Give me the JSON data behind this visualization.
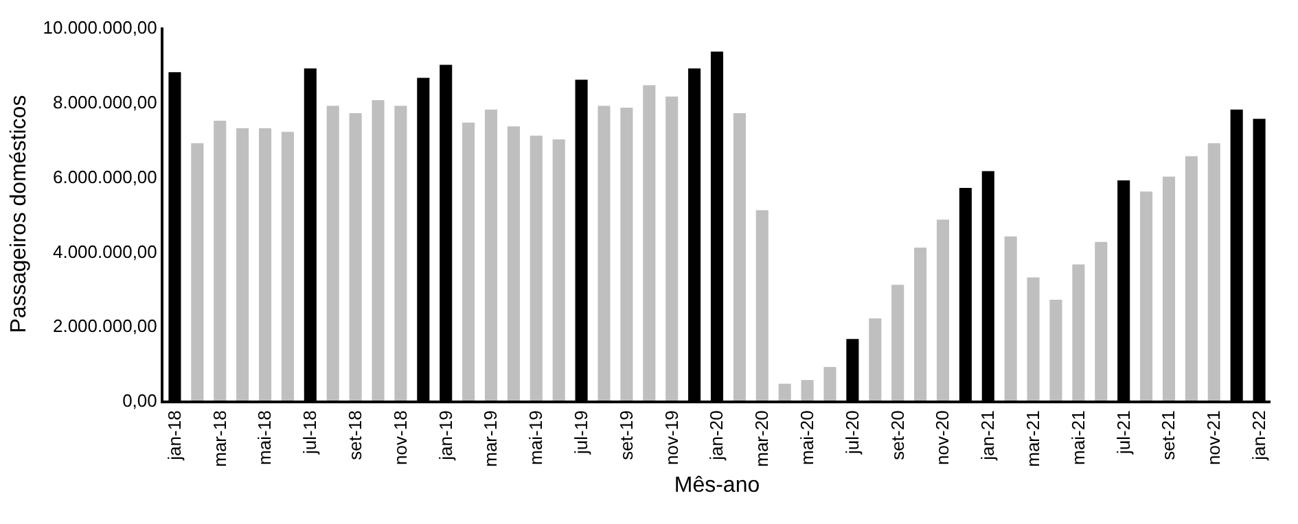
{
  "chart_data": {
    "type": "bar",
    "xlabel": "Mês-ano",
    "ylabel": "Passageiros domésticos",
    "categories": [
      "jan-18",
      null,
      "mar-18",
      null,
      "mai-18",
      null,
      "jul-18",
      null,
      "set-18",
      null,
      "nov-18",
      null,
      "jan-19",
      null,
      "mar-19",
      null,
      "mai-19",
      null,
      "jul-19",
      null,
      "set-19",
      null,
      "nov-19",
      null,
      "jan-20",
      null,
      "mar-20",
      null,
      "mai-20",
      null,
      "jul-20",
      null,
      "set-20",
      null,
      "nov-20",
      null,
      "jan-21",
      null,
      "mar-21",
      null,
      "mai-21",
      null,
      "jul-21",
      null,
      "set-21",
      null,
      "nov-21",
      null,
      "jan-22"
    ],
    "values": [
      8800000,
      6900000,
      7500000,
      7300000,
      7300000,
      7200000,
      8900000,
      7900000,
      7700000,
      8050000,
      7900000,
      8650000,
      9000000,
      7450000,
      7800000,
      7350000,
      7100000,
      7000000,
      8600000,
      7900000,
      7850000,
      8450000,
      8150000,
      8900000,
      9350000,
      7700000,
      5100000,
      450000,
      550000,
      900000,
      1650000,
      2200000,
      3100000,
      4100000,
      4850000,
      5700000,
      6150000,
      4400000,
      3300000,
      2700000,
      3650000,
      4250000,
      5900000,
      5600000,
      6000000,
      6550000,
      6900000,
      7800000,
      7550000
    ],
    "colors": [
      "#000000",
      "#bfbfbf",
      "#bfbfbf",
      "#bfbfbf",
      "#bfbfbf",
      "#bfbfbf",
      "#000000",
      "#bfbfbf",
      "#bfbfbf",
      "#bfbfbf",
      "#bfbfbf",
      "#000000",
      "#000000",
      "#bfbfbf",
      "#bfbfbf",
      "#bfbfbf",
      "#bfbfbf",
      "#bfbfbf",
      "#000000",
      "#bfbfbf",
      "#bfbfbf",
      "#bfbfbf",
      "#bfbfbf",
      "#000000",
      "#000000",
      "#bfbfbf",
      "#bfbfbf",
      "#bfbfbf",
      "#bfbfbf",
      "#bfbfbf",
      "#000000",
      "#bfbfbf",
      "#bfbfbf",
      "#bfbfbf",
      "#bfbfbf",
      "#000000",
      "#000000",
      "#bfbfbf",
      "#bfbfbf",
      "#bfbfbf",
      "#bfbfbf",
      "#bfbfbf",
      "#000000",
      "#bfbfbf",
      "#bfbfbf",
      "#bfbfbf",
      "#bfbfbf",
      "#000000",
      "#000000"
    ],
    "ylim": [
      0,
      10000000
    ],
    "yticks": [
      {
        "value": 0,
        "label": "0,00"
      },
      {
        "value": 2000000,
        "label": "2.000.000,00"
      },
      {
        "value": 4000000,
        "label": "4.000.000,00"
      },
      {
        "value": 6000000,
        "label": "6.000.000,00"
      },
      {
        "value": 8000000,
        "label": "8.000.000,00"
      },
      {
        "value": 10000000,
        "label": "10.000.000,00"
      }
    ],
    "grid": false
  }
}
